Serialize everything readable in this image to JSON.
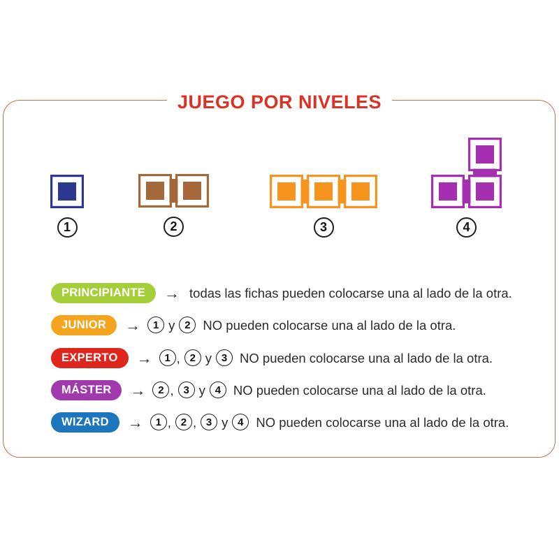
{
  "title": "JUEGO POR NIVELES",
  "colors": {
    "title": "#DB3224",
    "card_border": "#C2714E",
    "text": "#2B2B2B"
  },
  "pieces": [
    {
      "number": "1",
      "color": "#2B3990",
      "cells": [
        [
          0,
          0
        ]
      ]
    },
    {
      "number": "2",
      "color": "#A5683A",
      "cells": [
        [
          0,
          0
        ],
        [
          1,
          0
        ]
      ]
    },
    {
      "number": "3",
      "color": "#F7941E",
      "cells": [
        [
          0,
          0
        ],
        [
          1,
          0
        ],
        [
          2,
          0
        ]
      ]
    },
    {
      "number": "4",
      "color": "#A52FB0",
      "cells": [
        [
          1,
          0
        ],
        [
          0,
          1
        ],
        [
          1,
          1
        ]
      ]
    }
  ],
  "levels": [
    {
      "id": "principiante",
      "label": "PRINCIPIANTE",
      "color": "#A6CE39",
      "arrow": "→",
      "tokens": [
        {
          "kind": "tail",
          "value": "todas las fichas pueden colocarse una al lado de la otra."
        }
      ]
    },
    {
      "id": "junior",
      "label": "JUNIOR",
      "color": "#F4A41D",
      "arrow": "→",
      "tokens": [
        {
          "kind": "circle",
          "value": "1"
        },
        {
          "kind": "text",
          "value": "y"
        },
        {
          "kind": "circle",
          "value": "2"
        },
        {
          "kind": "tail",
          "value": "NO pueden colocarse una al lado de la otra."
        }
      ]
    },
    {
      "id": "experto",
      "label": "EXPERTO",
      "color": "#E0251C",
      "arrow": "→",
      "tokens": [
        {
          "kind": "circle",
          "value": "1"
        },
        {
          "kind": "comma",
          "value": ","
        },
        {
          "kind": "circle",
          "value": "2"
        },
        {
          "kind": "text",
          "value": "y"
        },
        {
          "kind": "circle",
          "value": "3"
        },
        {
          "kind": "tail",
          "value": "NO pueden colocarse una al lado de la otra."
        }
      ]
    },
    {
      "id": "master",
      "label": "MÁSTER",
      "color": "#A238AE",
      "arrow": "→",
      "tokens": [
        {
          "kind": "circle",
          "value": "2"
        },
        {
          "kind": "comma",
          "value": ","
        },
        {
          "kind": "circle",
          "value": "3"
        },
        {
          "kind": "text",
          "value": "y"
        },
        {
          "kind": "circle",
          "value": "4"
        },
        {
          "kind": "tail",
          "value": "NO pueden colocarse una al lado de la otra."
        }
      ]
    },
    {
      "id": "wizard",
      "label": "WIZARD",
      "color": "#1B76BE",
      "arrow": "→",
      "tokens": [
        {
          "kind": "circle",
          "value": "1"
        },
        {
          "kind": "comma",
          "value": ","
        },
        {
          "kind": "circle",
          "value": "2"
        },
        {
          "kind": "comma",
          "value": ","
        },
        {
          "kind": "circle",
          "value": "3"
        },
        {
          "kind": "text",
          "value": "y"
        },
        {
          "kind": "circle",
          "value": "4"
        },
        {
          "kind": "tail",
          "value": "NO pueden colocarse una al lado de la otra."
        }
      ]
    }
  ]
}
